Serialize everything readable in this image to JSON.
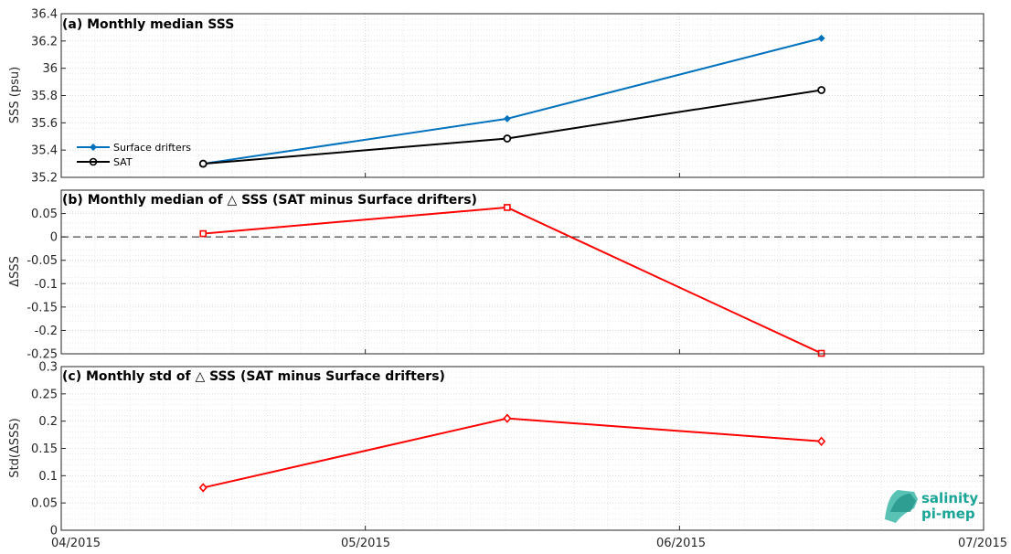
{
  "colors": {
    "drifters": "#0072bd",
    "sat": "#000000",
    "delta": "#ff0000",
    "logo": "#1aa597"
  },
  "logo": {
    "line1": "salinity",
    "line2": "pi-mep"
  },
  "x_axis": {
    "range": [
      "2015-04-01",
      "2015-07-01"
    ],
    "tick_labels": [
      "04/2015",
      "05/2015",
      "06/2015",
      "07/2015"
    ],
    "tick_dates": [
      "2015-04-01",
      "2015-05-01",
      "2015-06-01",
      "2015-07-01"
    ]
  },
  "chart_data": [
    {
      "type": "line",
      "title": "(a) Monthly median SSS",
      "ylabel": "SSS (psu)",
      "ylim": [
        35.2,
        36.4
      ],
      "yticks": [
        "35.2",
        "35.4",
        "35.6",
        "35.8",
        "36",
        "36.2",
        "36.4"
      ],
      "grid": true,
      "legend_location": "lower-left",
      "x": [
        "2015-04-15",
        "2015-05-15",
        "2015-06-15"
      ],
      "series": [
        {
          "name": "Surface drifters",
          "color": "#0072bd",
          "marker": "diamond-filled",
          "values": [
            35.3,
            35.63,
            36.22
          ]
        },
        {
          "name": "SAT",
          "color": "#000000",
          "marker": "circle-open",
          "values": [
            35.3,
            35.485,
            35.84
          ]
        }
      ]
    },
    {
      "type": "line",
      "title": "(b) Monthly median of △ SSS (SAT minus Surface drifters)",
      "ylabel": "ΔSSS",
      "ylim": [
        -0.25,
        0.1
      ],
      "yticks": [
        "-0.25",
        "-0.2",
        "-0.15",
        "-0.1",
        "-0.05",
        "0",
        "0.05"
      ],
      "grid": true,
      "reference_line": 0,
      "x": [
        "2015-04-15",
        "2015-05-15",
        "2015-06-15"
      ],
      "series": [
        {
          "color": "#ff0000",
          "marker": "square-open",
          "values": [
            0.007,
            0.063,
            -0.249
          ]
        }
      ]
    },
    {
      "type": "line",
      "title": "(c) Monthly std of △ SSS (SAT minus Surface drifters)",
      "ylabel": "Std(ΔSSS)",
      "ylim": [
        0,
        0.3
      ],
      "yticks": [
        "0",
        "0.05",
        "0.1",
        "0.15",
        "0.2",
        "0.25",
        "0.3"
      ],
      "grid": true,
      "x": [
        "2015-04-15",
        "2015-05-15",
        "2015-06-15"
      ],
      "series": [
        {
          "color": "#ff0000",
          "marker": "diamond-open",
          "values": [
            0.078,
            0.205,
            0.163
          ]
        }
      ]
    }
  ]
}
